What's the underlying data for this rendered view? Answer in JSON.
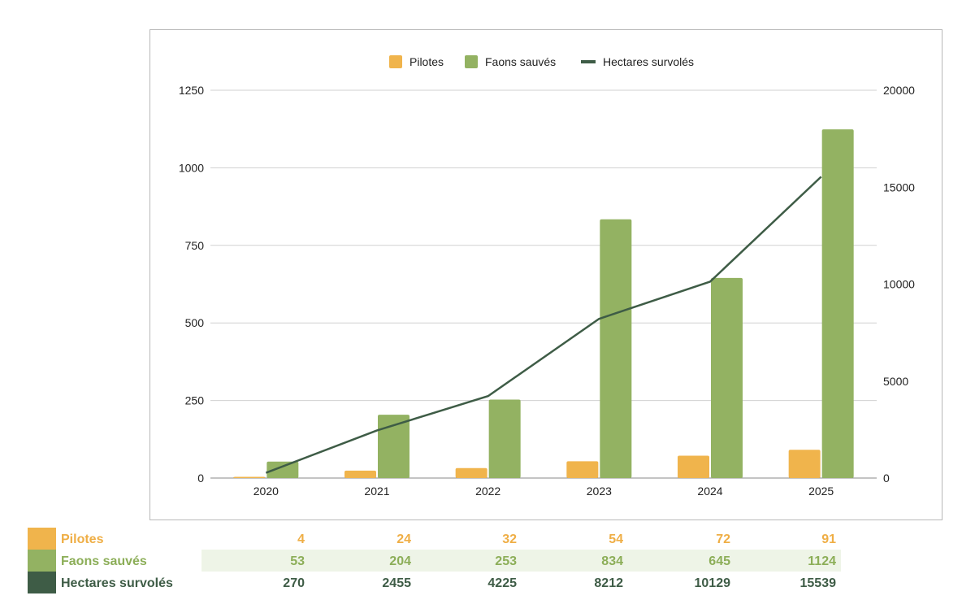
{
  "chart_data": {
    "type": "bar+line",
    "categories": [
      "2020",
      "2021",
      "2022",
      "2023",
      "2024",
      "2025"
    ],
    "series": [
      {
        "name": "Pilotes",
        "kind": "bar",
        "axis": "left",
        "color": "#F0B44C",
        "values": [
          4,
          24,
          32,
          54,
          72,
          91
        ]
      },
      {
        "name": "Faons sauvés",
        "kind": "bar",
        "axis": "left",
        "color": "#93B262",
        "values": [
          53,
          204,
          253,
          834,
          645,
          1124
        ]
      },
      {
        "name": "Hectares survolés",
        "kind": "line",
        "axis": "right",
        "color": "#3E5C46",
        "values": [
          270,
          2455,
          4225,
          8212,
          10129,
          15539
        ]
      }
    ],
    "y_left": {
      "min": 0,
      "max": 1250,
      "ticks": [
        "0",
        "250",
        "500",
        "750",
        "1000",
        "1250"
      ]
    },
    "y_right": {
      "min": 0,
      "max": 20000,
      "ticks": [
        "0",
        "5000",
        "10000",
        "15000",
        "20000"
      ]
    },
    "legend_position": "top-center",
    "grid": true
  },
  "table": {
    "rows": [
      {
        "label": "Pilotes",
        "color": "#F0B44C",
        "text_color": "#EFAE45",
        "values": [
          "4",
          "24",
          "32",
          "54",
          "72",
          "91"
        ]
      },
      {
        "label": "Faons sauvés",
        "color": "#93B262",
        "text_color": "#8CAE58",
        "values": [
          "53",
          "204",
          "253",
          "834",
          "645",
          "1124"
        ]
      },
      {
        "label": "Hectares survolés",
        "color": "#3E5C46",
        "text_color": "#3E5C46",
        "values": [
          "270",
          "2455",
          "4225",
          "8212",
          "10129",
          "15539"
        ]
      }
    ]
  }
}
